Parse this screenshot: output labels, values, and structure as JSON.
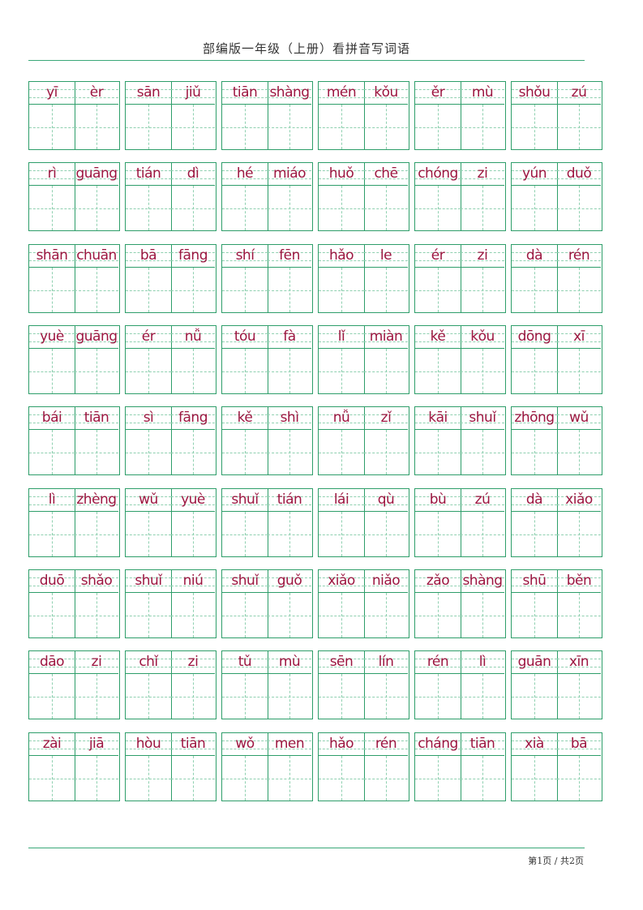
{
  "header": {
    "title": "部编版一年级（上册）看拼音写词语"
  },
  "footer": {
    "page_info": "第1页 / 共2页"
  },
  "colors": {
    "grid": "#2e9e6a",
    "pinyin": "#9c1640"
  },
  "rows": [
    [
      "yī",
      "èr",
      "sān",
      "jiǔ",
      "tiān",
      "shàng",
      "mén",
      "kǒu",
      "ěr",
      "mù",
      "shǒu",
      "zú"
    ],
    [
      "rì",
      "guāng",
      "tián",
      "dì",
      "hé",
      "miáo",
      "huǒ",
      "chē",
      "chóng",
      "zi",
      "yún",
      "duǒ"
    ],
    [
      "shān",
      "chuān",
      "bā",
      "fāng",
      "shí",
      "fēn",
      "hǎo",
      "le",
      "ér",
      "zi",
      "dà",
      "rén"
    ],
    [
      "yuè",
      "guāng",
      "ér",
      "nǚ",
      "tóu",
      "fà",
      "lǐ",
      "miàn",
      "kě",
      "kǒu",
      "dōng",
      "xī"
    ],
    [
      "bái",
      "tiān",
      "sì",
      "fāng",
      "kě",
      "shì",
      "nǚ",
      "zǐ",
      "kāi",
      "shuǐ",
      "zhōng",
      "wǔ"
    ],
    [
      "lì",
      "zhèng",
      "wǔ",
      "yuè",
      "shuǐ",
      "tián",
      "lái",
      "qù",
      "bù",
      "zú",
      "dà",
      "xiǎo"
    ],
    [
      "duō",
      "shǎo",
      "shuǐ",
      "niú",
      "shuǐ",
      "guǒ",
      "xiǎo",
      "niǎo",
      "zǎo",
      "shàng",
      "shū",
      "běn"
    ],
    [
      "dāo",
      "zi",
      "chǐ",
      "zi",
      "tǔ",
      "mù",
      "sēn",
      "lín",
      "rén",
      "lì",
      "guān",
      "xīn"
    ],
    [
      "zài",
      "jiā",
      "hòu",
      "tiān",
      "wǒ",
      "men",
      "hǎo",
      "rén",
      "cháng",
      "tiān",
      "xià",
      "bā"
    ]
  ]
}
